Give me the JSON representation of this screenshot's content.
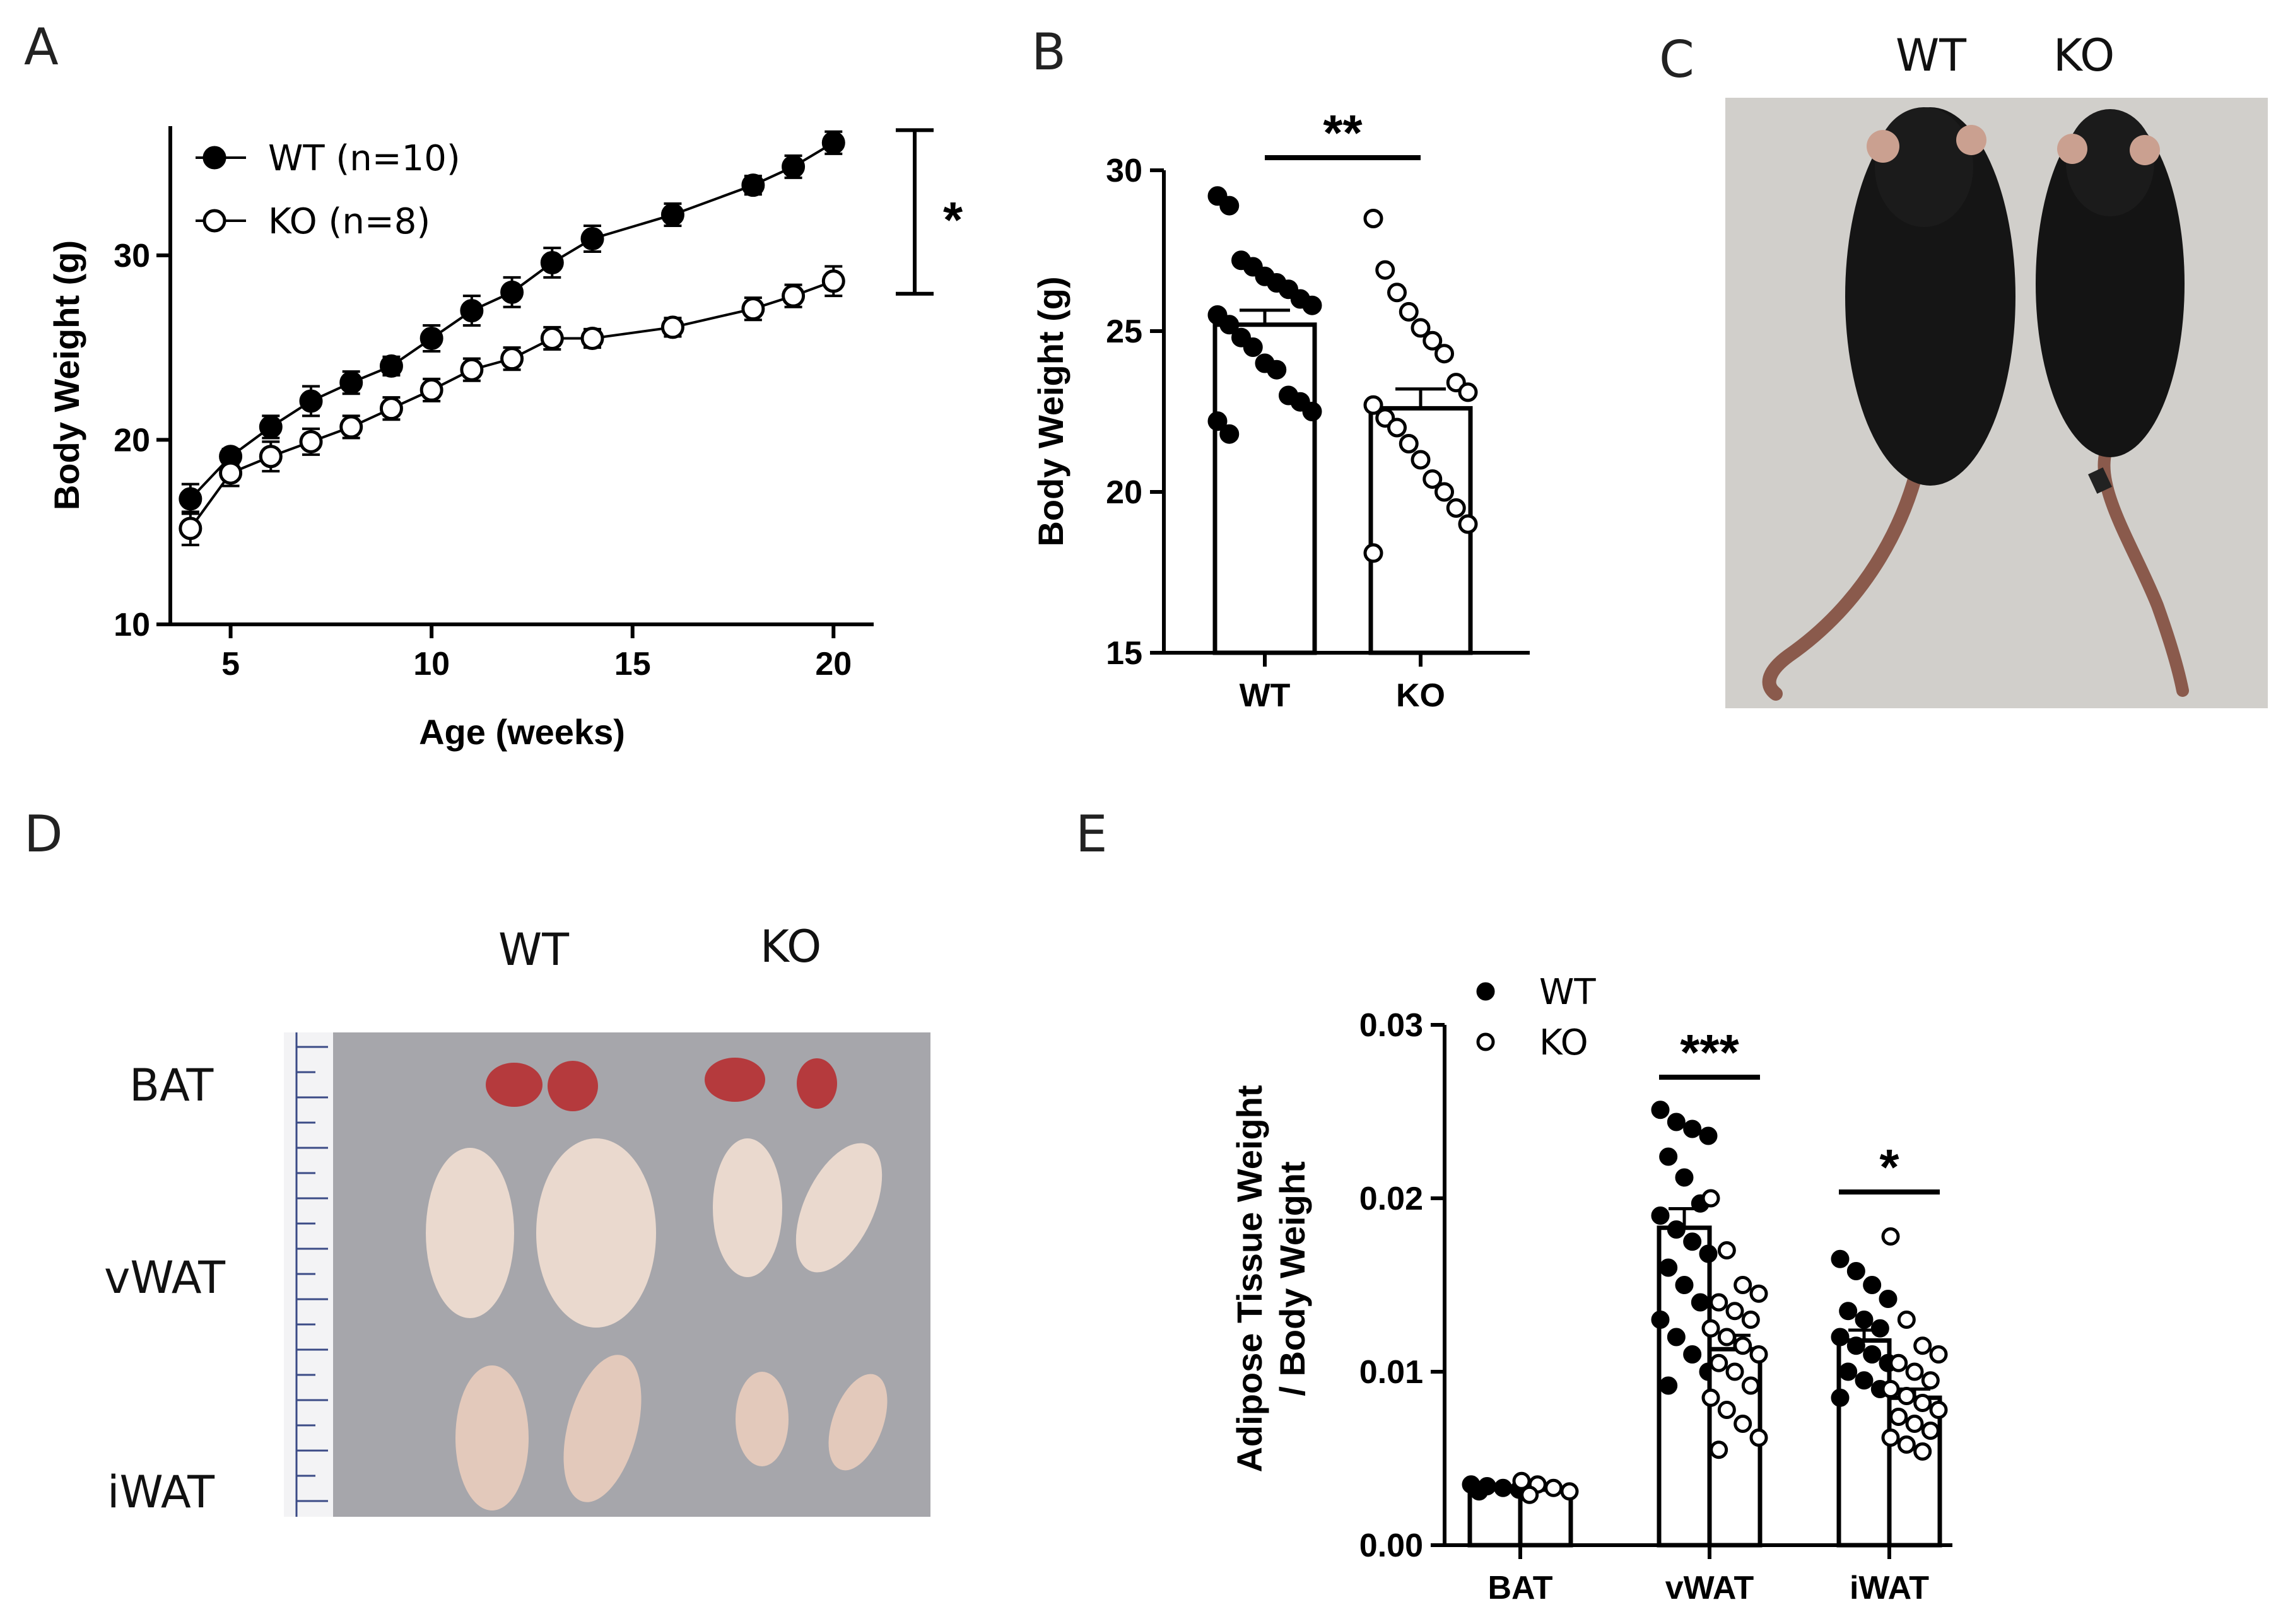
{
  "panels": {
    "A": "A",
    "B": "B",
    "C": "C",
    "D": "D",
    "E": "E"
  },
  "photo_C": {
    "labels": [
      "WT",
      "KO"
    ]
  },
  "photo_D": {
    "column_labels": [
      "WT",
      "KO"
    ],
    "row_labels": [
      "BAT",
      "vWAT",
      "iWAT"
    ]
  },
  "chart_data": [
    {
      "panel": "A",
      "type": "line",
      "xlabel": "Age (weeks)",
      "ylabel": "Body Weight (g)",
      "xlim": [
        3.5,
        21
      ],
      "ylim": [
        10,
        37
      ],
      "xticks": [
        "5",
        "10",
        "15",
        "20"
      ],
      "yticks": [
        "10",
        "20",
        "30"
      ],
      "legend_position": "top-left",
      "significance": "*",
      "series": [
        {
          "name": "WT (n=10)",
          "marker": "filled",
          "x": [
            4,
            5,
            6,
            7,
            8,
            9,
            10,
            11,
            12,
            13,
            14,
            16,
            18,
            19,
            20
          ],
          "y": [
            16.8,
            19.1,
            20.7,
            22.1,
            23.1,
            24.0,
            25.5,
            27.0,
            28.0,
            29.6,
            30.9,
            32.2,
            33.8,
            34.8,
            36.1
          ],
          "err": [
            0.8,
            0.4,
            0.6,
            0.8,
            0.6,
            0.5,
            0.7,
            0.8,
            0.8,
            0.8,
            0.7,
            0.6,
            0.5,
            0.6,
            0.6
          ]
        },
        {
          "name": "KO (n=8)",
          "marker": "open",
          "x": [
            4,
            5,
            6,
            7,
            8,
            9,
            10,
            11,
            12,
            13,
            14,
            16,
            18,
            19,
            20
          ],
          "y": [
            15.2,
            18.2,
            19.1,
            19.9,
            20.7,
            21.7,
            22.7,
            23.8,
            24.4,
            25.5,
            25.5,
            26.1,
            27.1,
            27.8,
            28.6
          ],
          "err": [
            0.9,
            0.7,
            0.8,
            0.7,
            0.6,
            0.6,
            0.6,
            0.6,
            0.6,
            0.6,
            0.5,
            0.5,
            0.6,
            0.6,
            0.8
          ]
        }
      ]
    },
    {
      "panel": "B",
      "type": "bar",
      "ylabel": "Body Weight (g)",
      "ylim": [
        15,
        30
      ],
      "yticks": [
        "15",
        "20",
        "25",
        "30"
      ],
      "categories": [
        "WT",
        "KO"
      ],
      "significance": "**",
      "series": [
        {
          "category": "WT",
          "mean": 25.2,
          "sem": 0.45,
          "marker": "filled",
          "points": [
            29.2,
            28.9,
            27.2,
            27.0,
            26.7,
            26.5,
            26.3,
            26.0,
            25.8,
            25.5,
            25.2,
            24.8,
            24.5,
            24.0,
            23.8,
            23.0,
            22.8,
            22.5,
            22.2,
            21.8
          ]
        },
        {
          "category": "KO",
          "mean": 22.6,
          "sem": 0.6,
          "marker": "open",
          "points": [
            28.5,
            26.9,
            26.2,
            25.6,
            25.1,
            24.7,
            24.3,
            23.4,
            23.1,
            22.7,
            22.3,
            22.0,
            21.5,
            21.0,
            20.4,
            20.0,
            19.5,
            19.0,
            18.1
          ]
        }
      ]
    },
    {
      "panel": "E",
      "type": "bar",
      "ylabel": "Adipose Tissue Weight / Body Weight",
      "ylabel_lines": [
        "Adipose Tissue Weight",
        "/ Body Weight"
      ],
      "ylim": [
        0,
        0.03
      ],
      "yticks": [
        "0.00",
        "0.01",
        "0.02",
        "0.03"
      ],
      "categories": [
        "BAT",
        "vWAT",
        "iWAT"
      ],
      "legend_position": "top-left",
      "legend": [
        "WT",
        "KO"
      ],
      "significance": [
        "",
        "***",
        "*"
      ],
      "series": [
        {
          "name": "WT",
          "marker": "filled",
          "means": [
            0.0033,
            0.0183,
            0.0118
          ],
          "sems": [
            0.0001,
            0.0011,
            0.0006
          ],
          "points": [
            [
              0.0035,
              0.0034,
              0.0033,
              0.0032,
              0.0031
            ],
            [
              0.0251,
              0.0244,
              0.024,
              0.0236,
              0.0224,
              0.0212,
              0.0197,
              0.019,
              0.0182,
              0.0175,
              0.0168,
              0.016,
              0.015,
              0.014,
              0.013,
              0.012,
              0.011,
              0.01,
              0.0092
            ],
            [
              0.0165,
              0.0158,
              0.015,
              0.0142,
              0.0135,
              0.013,
              0.0125,
              0.012,
              0.0115,
              0.011,
              0.0105,
              0.01,
              0.0095,
              0.009,
              0.0085
            ]
          ]
        },
        {
          "name": "KO",
          "marker": "open",
          "means": [
            0.0032,
            0.0113,
            0.0085
          ],
          "sems": [
            0.0001,
            0.0008,
            0.0005
          ],
          "points": [
            [
              0.0037,
              0.0035,
              0.0033,
              0.0031,
              0.0029
            ],
            [
              0.02,
              0.017,
              0.015,
              0.0145,
              0.014,
              0.0135,
              0.013,
              0.0125,
              0.012,
              0.0115,
              0.011,
              0.0105,
              0.01,
              0.0092,
              0.0085,
              0.0078,
              0.007,
              0.0062,
              0.0055
            ],
            [
              0.0178,
              0.013,
              0.0115,
              0.011,
              0.0105,
              0.01,
              0.0095,
              0.009,
              0.0086,
              0.0082,
              0.0078,
              0.0074,
              0.007,
              0.0066,
              0.0062,
              0.0058,
              0.0054
            ]
          ]
        }
      ]
    }
  ]
}
